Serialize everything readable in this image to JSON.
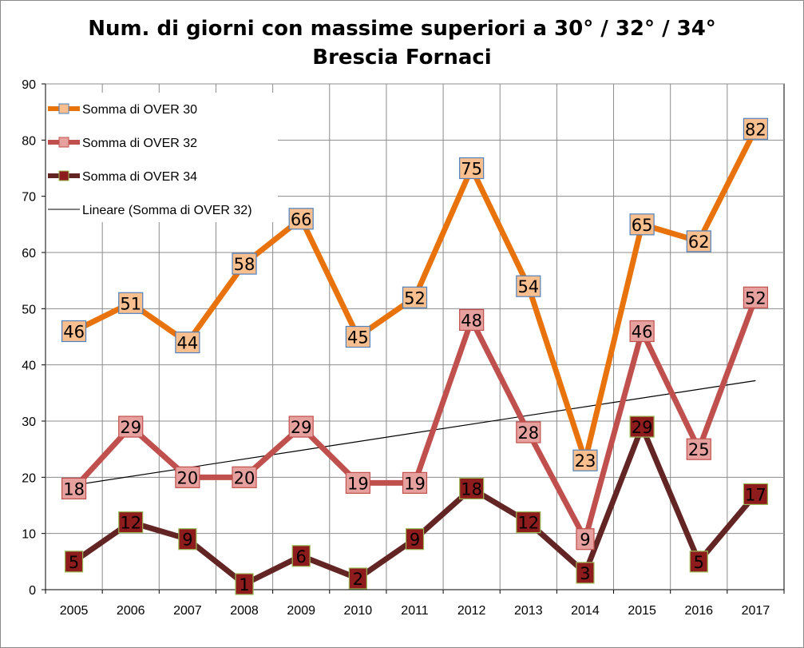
{
  "chart_data": {
    "type": "line",
    "title": "Num. di giorni con massime superiori a 30° / 32° / 34°",
    "subtitle": "Brescia Fornaci",
    "xlabel": "",
    "ylabel": "",
    "ylim": [
      0,
      90
    ],
    "yticks": [
      "0",
      "10",
      "20",
      "30",
      "40",
      "50",
      "60",
      "70",
      "80",
      "90"
    ],
    "grid": true,
    "legend_position": "top-left",
    "categories": [
      "2005",
      "2006",
      "2007",
      "2008",
      "2009",
      "2010",
      "2011",
      "2012",
      "2013",
      "2014",
      "2015",
      "2016",
      "2017"
    ],
    "series": [
      {
        "name": "Somma di OVER 30",
        "line_color": "#e8720c",
        "marker_fill": "#f9bf8f",
        "marker_stroke": "#4f81bd",
        "values": [
          46,
          51,
          44,
          58,
          66,
          45,
          52,
          75,
          54,
          23,
          65,
          62,
          82
        ]
      },
      {
        "name": "Somma di OVER 32",
        "line_color": "#c0504d",
        "marker_fill": "#e6a09e",
        "marker_stroke": "#c0504d",
        "values": [
          18,
          29,
          20,
          20,
          29,
          19,
          19,
          48,
          28,
          9,
          46,
          25,
          52
        ]
      },
      {
        "name": "Somma di OVER 34",
        "line_color": "#632523",
        "marker_fill": "#8e1c1c",
        "marker_stroke": "#9bbb59",
        "values": [
          5,
          12,
          9,
          1,
          6,
          2,
          9,
          18,
          12,
          3,
          29,
          5,
          17
        ]
      }
    ],
    "trendline": {
      "name": "Lineare (Somma di OVER 32)",
      "color": "#000000",
      "start": 18.6,
      "end": 37.2
    }
  }
}
